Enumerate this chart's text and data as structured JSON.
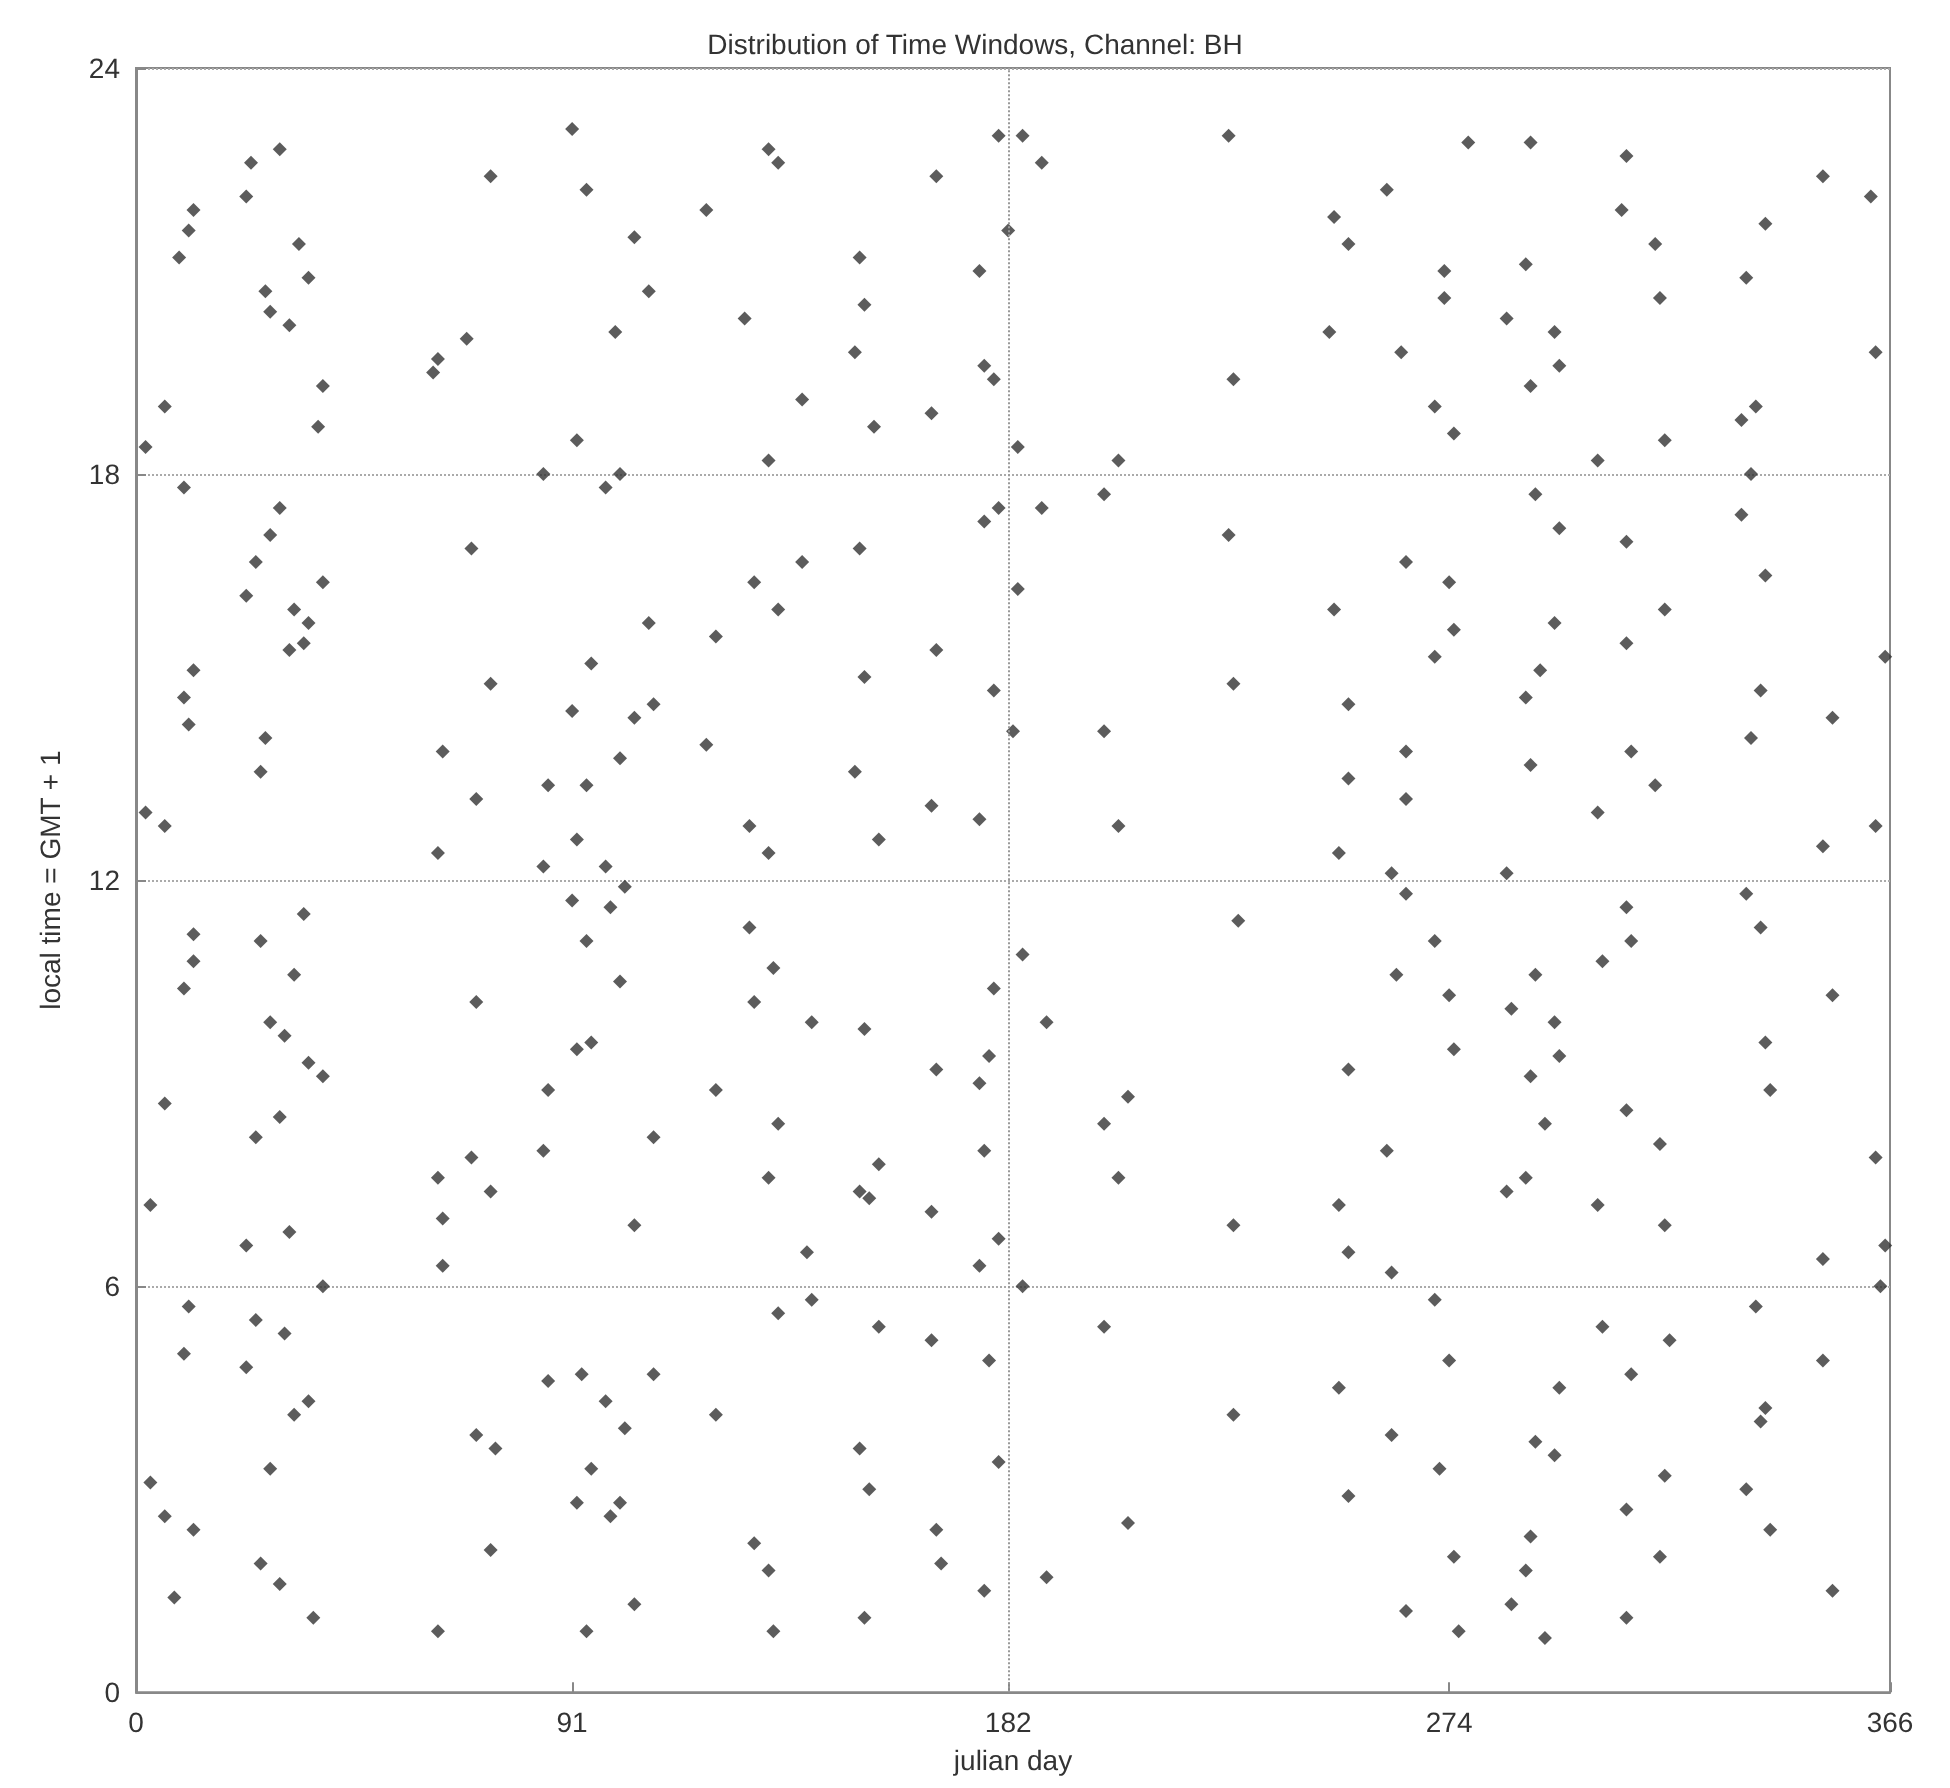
{
  "chart_data": {
    "type": "scatter",
    "title": "Distribution of Time Windows, Channel: BH",
    "xlabel": "julian day",
    "ylabel": "local time = GMT + 1",
    "xlim": [
      0,
      366
    ],
    "xticks": [
      0,
      91,
      182,
      274,
      366
    ],
    "ylim": [
      0,
      24
    ],
    "yticks": [
      0,
      6,
      12,
      18,
      24
    ],
    "grid": "y",
    "ref_lines": [
      {
        "axis": "x",
        "value": 182,
        "line_style": "dotted",
        "color": "#999999"
      }
    ],
    "marker": "diamond",
    "x": [
      91,
      30,
      24,
      74,
      23,
      94,
      119,
      12,
      11,
      9,
      34,
      104,
      36,
      107,
      27,
      28,
      32,
      100,
      69,
      63,
      62,
      39,
      6,
      38,
      92,
      2,
      85,
      101,
      10,
      98,
      30,
      28,
      70,
      25,
      39,
      23,
      33,
      36,
      107,
      121,
      35,
      32,
      12,
      95,
      74,
      10,
      91,
      108,
      104,
      11,
      27,
      119,
      64,
      26,
      101,
      86,
      71,
      94,
      2,
      6,
      92,
      63,
      85,
      98,
      132,
      134,
      180,
      185,
      189,
      228,
      167,
      182,
      151,
      176,
      152,
      127,
      150,
      177,
      179,
      229,
      139,
      166,
      154,
      184,
      132,
      205,
      202,
      180,
      177,
      189,
      228,
      151,
      139,
      129,
      134,
      184,
      167,
      152,
      179,
      229,
      183,
      202,
      150,
      166,
      176,
      128,
      205,
      155,
      132,
      278,
      291,
      311,
      352,
      261,
      362,
      250,
      310,
      340,
      317,
      253,
      290,
      273,
      336,
      273,
      318,
      286,
      249,
      296,
      264,
      363,
      297,
      291,
      338,
      271,
      335,
      275,
      319,
      305,
      337,
      292,
      335,
      297,
      311,
      265,
      340,
      274,
      250,
      319,
      296,
      275,
      311,
      271,
      365,
      293,
      339,
      253,
      290,
      354,
      337,
      265,
      312,
      291,
      253,
      317,
      265,
      305,
      363,
      251,
      352,
      262,
      286,
      35,
      91,
      99,
      102,
      12,
      94,
      26,
      12,
      33,
      10,
      101,
      71,
      28,
      31,
      95,
      92,
      36,
      39,
      86,
      121,
      6,
      30,
      25,
      108,
      85,
      70,
      63,
      74,
      3,
      64,
      104,
      32,
      23,
      64,
      39,
      11,
      25,
      31,
      10,
      23,
      108,
      86,
      93,
      36,
      98,
      33,
      121,
      102,
      71,
      75,
      28,
      95,
      3,
      92,
      101,
      99,
      6,
      12,
      74,
      26,
      30,
      8,
      104,
      37,
      63,
      94,
      128,
      230,
      185,
      133,
      179,
      129,
      141,
      152,
      190,
      178,
      167,
      176,
      207,
      134,
      202,
      177,
      155,
      132,
      205,
      151,
      153,
      166,
      229,
      180,
      140,
      176,
      185,
      141,
      134,
      155,
      202,
      166,
      178,
      229,
      151,
      180,
      153,
      207,
      167,
      129,
      168,
      132,
      190,
      177,
      152,
      133,
      336,
      265,
      311,
      339,
      271,
      312,
      306,
      263,
      292,
      274,
      354,
      287,
      296,
      275,
      340,
      297,
      253,
      291,
      341,
      311,
      294,
      318,
      261,
      363,
      290,
      286,
      251,
      305,
      319,
      253,
      365,
      352,
      262,
      364,
      271,
      338,
      306,
      320,
      274,
      352,
      251,
      312,
      297,
      340,
      339,
      262,
      292,
      296,
      272,
      319,
      253,
      336,
      311,
      341,
      291,
      275,
      318,
      290,
      354,
      287,
      265,
      311,
      276,
      294
    ],
    "series": [
      {
        "color": "#333333",
        "values": [
          23.1,
          22.8,
          22.6,
          22.4,
          22.1,
          22.2,
          21.9,
          21.9,
          21.6,
          21.2,
          21.4,
          21.5,
          20.9,
          20.7,
          20.7,
          20.4,
          20.2,
          20.1,
          20.0,
          19.7,
          19.5,
          19.3,
          19.0,
          18.7,
          18.5,
          18.4,
          18.0,
          18.0,
          17.8,
          17.8,
          17.5,
          17.1,
          16.9,
          16.7,
          16.4,
          16.2,
          16.0,
          15.8,
          15.8,
          15.6,
          15.5,
          15.4,
          15.1,
          15.2,
          14.9,
          14.7,
          14.5,
          14.6,
          14.4,
          14.3,
          14.1,
          14.0,
          13.9,
          13.6,
          13.8,
          13.4,
          13.2,
          13.4,
          13.0,
          12.8,
          12.6,
          12.4,
          12.2,
          12.2,
          22.8,
          22.6,
          23.0,
          23.0,
          22.6,
          23.0,
          22.4,
          21.6,
          21.2,
          21.0,
          20.5,
          20.3,
          19.8,
          19.6,
          19.4,
          19.4,
          19.1,
          18.9,
          18.7,
          18.4,
          18.2,
          18.2,
          17.7,
          17.5,
          17.3,
          17.5,
          17.1,
          16.9,
          16.7,
          16.4,
          16.0,
          16.3,
          15.4,
          15.0,
          14.8,
          14.9,
          14.2,
          14.2,
          13.6,
          13.1,
          12.9,
          12.8,
          12.8,
          12.6,
          12.4,
          22.9,
          22.9,
          22.7,
          22.4,
          22.2,
          22.1,
          21.8,
          21.9,
          21.7,
          21.4,
          21.4,
          21.1,
          21.0,
          20.9,
          20.6,
          20.6,
          20.3,
          20.1,
          20.1,
          19.8,
          19.8,
          19.6,
          19.3,
          19.0,
          19.0,
          18.8,
          18.6,
          18.5,
          18.2,
          18.0,
          17.7,
          17.4,
          17.2,
          17.0,
          16.7,
          16.5,
          16.4,
          16.0,
          16.0,
          15.8,
          15.7,
          15.5,
          15.3,
          15.3,
          15.1,
          14.8,
          14.6,
          14.7,
          14.4,
          14.1,
          13.9,
          13.9,
          13.7,
          13.5,
          13.4,
          13.2,
          13.0,
          12.8,
          12.4,
          12.5,
          12.1,
          12.1,
          11.5,
          11.7,
          11.6,
          11.9,
          11.2,
          11.1,
          11.1,
          10.8,
          10.6,
          10.4,
          10.5,
          10.2,
          9.9,
          9.7,
          9.6,
          9.5,
          9.3,
          9.1,
          8.9,
          8.9,
          8.7,
          8.5,
          8.2,
          8.2,
          8.0,
          7.9,
          7.6,
          7.4,
          7.2,
          7.0,
          6.9,
          6.8,
          6.6,
          6.3,
          6.0,
          5.7,
          5.5,
          5.3,
          5.0,
          4.8,
          4.7,
          4.6,
          4.7,
          4.3,
          4.3,
          4.1,
          4.1,
          3.9,
          3.8,
          3.6,
          3.3,
          3.3,
          3.1,
          2.8,
          2.8,
          2.6,
          2.6,
          2.4,
          2.1,
          1.9,
          1.6,
          1.4,
          1.3,
          1.1,
          0.9,
          0.9,
          11.3,
          11.4,
          10.9,
          10.7,
          10.4,
          10.2,
          9.9,
          9.8,
          9.9,
          9.4,
          9.2,
          9.0,
          8.8,
          8.4,
          8.4,
          8.0,
          7.8,
          7.6,
          7.6,
          7.4,
          7.3,
          7.1,
          6.9,
          6.7,
          6.5,
          6.3,
          6.0,
          5.8,
          5.6,
          5.4,
          5.4,
          5.2,
          4.9,
          4.1,
          3.6,
          3.4,
          3.0,
          2.5,
          2.4,
          2.2,
          1.9,
          1.8,
          1.7,
          1.5,
          1.1,
          0.9,
          11.8,
          11.8,
          11.6,
          11.3,
          11.1,
          11.1,
          10.8,
          10.6,
          10.6,
          10.3,
          10.3,
          10.1,
          9.9,
          9.5,
          9.6,
          9.4,
          9.2,
          9.1,
          8.9,
          8.6,
          8.4,
          8.1,
          8.0,
          7.9,
          7.6,
          7.4,
          7.2,
          7.2,
          6.9,
          6.5,
          6.6,
          6.4,
          6.2,
          6.0,
          5.8,
          5.7,
          5.4,
          5.2,
          4.9,
          4.9,
          4.5,
          4.7,
          4.5,
          4.2,
          4.0,
          3.8,
          3.7,
          3.5,
          3.3,
          3.2,
          2.9,
          3.0,
          2.7,
          2.4,
          2.3,
          2.0,
          2.0,
          1.8,
          1.5,
          1.3,
          1.2,
          1.1,
          0.9,
          0.8
        ]
      }
    ]
  }
}
